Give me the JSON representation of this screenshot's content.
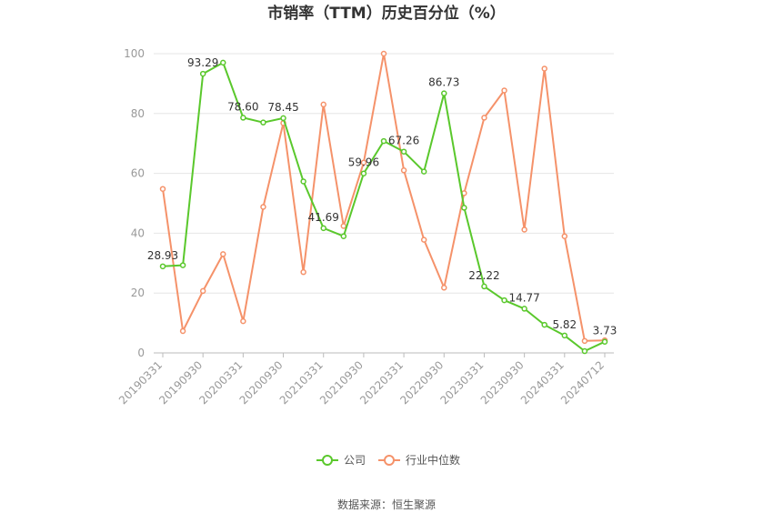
{
  "chart_data": {
    "type": "line",
    "title": "市销率（TTM）历史百分位（%）",
    "xlabel": "",
    "ylabel": "",
    "ylim": [
      0,
      100
    ],
    "yticks": [
      0,
      20,
      40,
      60,
      80,
      100
    ],
    "x": [
      "20190331",
      "20190630",
      "20190930",
      "20191231",
      "20200331",
      "20200630",
      "20200930",
      "20201231",
      "20210331",
      "20210630",
      "20210930",
      "20211231",
      "20220331",
      "20220630",
      "20220930",
      "20221231",
      "20230331",
      "20230630",
      "20230930",
      "20231231",
      "20240331",
      "20240630",
      "20240712"
    ],
    "x_tick_labels": [
      "20190331",
      "20190930",
      "20200331",
      "20200930",
      "20210331",
      "20210930",
      "20220331",
      "20220930",
      "20230331",
      "20230930",
      "20240331",
      "20240712"
    ],
    "x_tick_indices": [
      0,
      2,
      4,
      6,
      8,
      10,
      12,
      14,
      16,
      18,
      20,
      22
    ],
    "series": [
      {
        "name": "公司",
        "color": "#5ac82c",
        "values": [
          28.93,
          29.3,
          93.29,
          97.0,
          78.6,
          77.0,
          78.45,
          57.3,
          41.69,
          39.0,
          59.96,
          70.8,
          67.26,
          60.6,
          86.73,
          48.5,
          22.22,
          17.6,
          14.77,
          9.4,
          5.82,
          0.6,
          3.73
        ],
        "labels": {
          "0": "28.93",
          "2": "93.29",
          "4": "78.60",
          "6": "78.45",
          "8": "41.69",
          "10": "59.96",
          "12": "67.26",
          "14": "86.73",
          "16": "22.22",
          "18": "14.77",
          "20": "5.82",
          "22": "3.73"
        }
      },
      {
        "name": "行业中位数",
        "color": "#f5926a",
        "values": [
          54.8,
          7.3,
          20.7,
          33.0,
          10.6,
          48.8,
          76.8,
          27.0,
          83.0,
          42.4,
          63.6,
          100.0,
          61.0,
          37.8,
          21.8,
          53.4,
          78.6,
          87.7,
          41.2,
          95.0,
          39.0,
          4.0,
          4.2
        ]
      }
    ],
    "legend_position": "bottom-center",
    "grid": true,
    "source": "数据来源：恒生聚源"
  }
}
